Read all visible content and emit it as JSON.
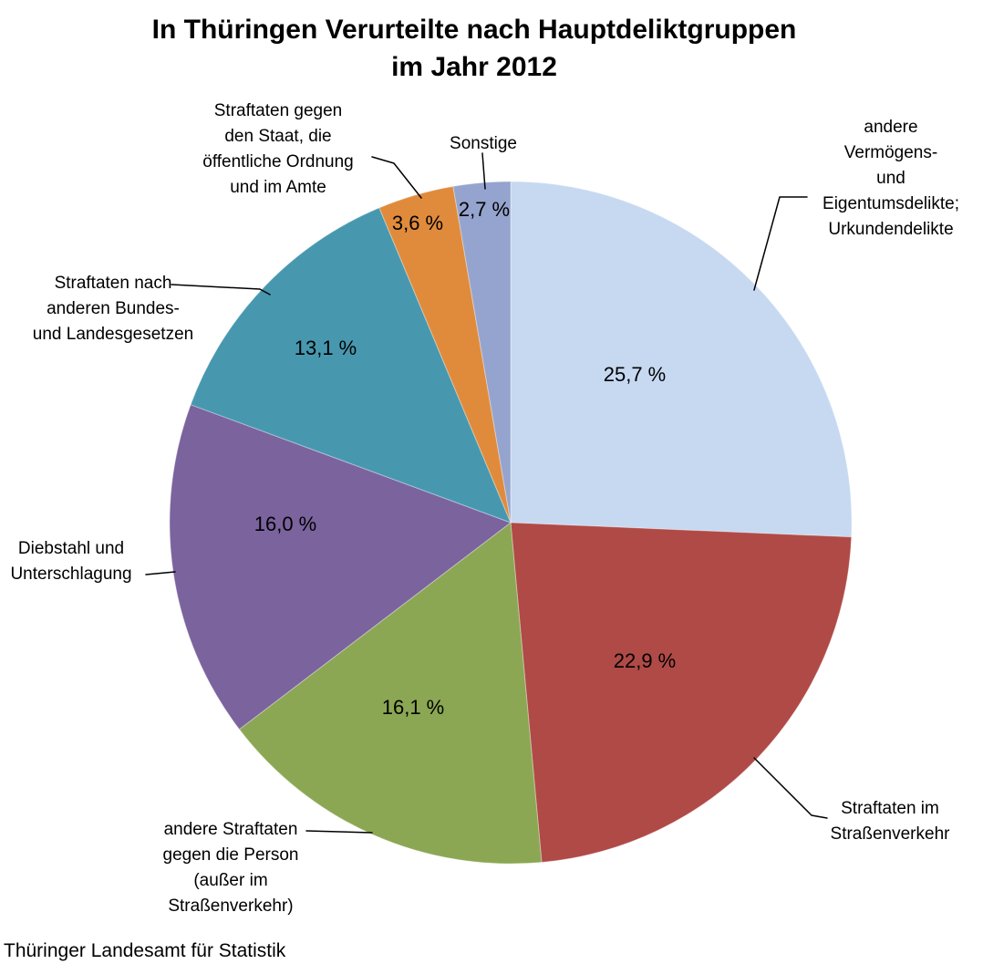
{
  "chart_data": {
    "type": "pie",
    "title": "In Thüringen Verurteilte nach Hauptdeliktgruppen\nim Jahr 2012",
    "source": "Thüringer Landesamt für Statistik",
    "start_angle_deg": 0,
    "direction": "clockwise",
    "legend_position": "none",
    "value_format": "percent, comma decimal, space before %",
    "slices": [
      {
        "id": "vermoegen",
        "label": "andere Vermögens-\nund\nEigentumsdelikte;\nUrkundendelikte",
        "value": 25.7,
        "pct_label": "25,7 %",
        "color": "#C6D9F1"
      },
      {
        "id": "strassenverkehr",
        "label": "Straftaten im\nStraßenverkehr",
        "value": 22.9,
        "pct_label": "22,9 %",
        "color": "#B04A47"
      },
      {
        "id": "person",
        "label": "andere Straftaten\ngegen die Person\n(außer im\nStraßenverkehr)",
        "value": 16.1,
        "pct_label": "16,1 %",
        "color": "#8BA753"
      },
      {
        "id": "diebstahl",
        "label": "Diebstahl und\nUnterschlagung",
        "value": 16.0,
        "pct_label": "16,0 %",
        "color": "#7B639E"
      },
      {
        "id": "bundesgesetze",
        "label": "Straftaten nach\nanderen Bundes-\nund Landesgesetzen",
        "value": 13.1,
        "pct_label": "13,1 %",
        "color": "#4798AF"
      },
      {
        "id": "staat",
        "label": "Straftaten gegen\nden Staat, die\nöffentliche Ordnung\nund im Amte",
        "value": 3.6,
        "pct_label": "3,6 %",
        "color": "#E08B3C"
      },
      {
        "id": "sonstige",
        "label": "Sonstige",
        "value": 2.7,
        "pct_label": "2,7 %",
        "color": "#95A4CE"
      }
    ]
  }
}
